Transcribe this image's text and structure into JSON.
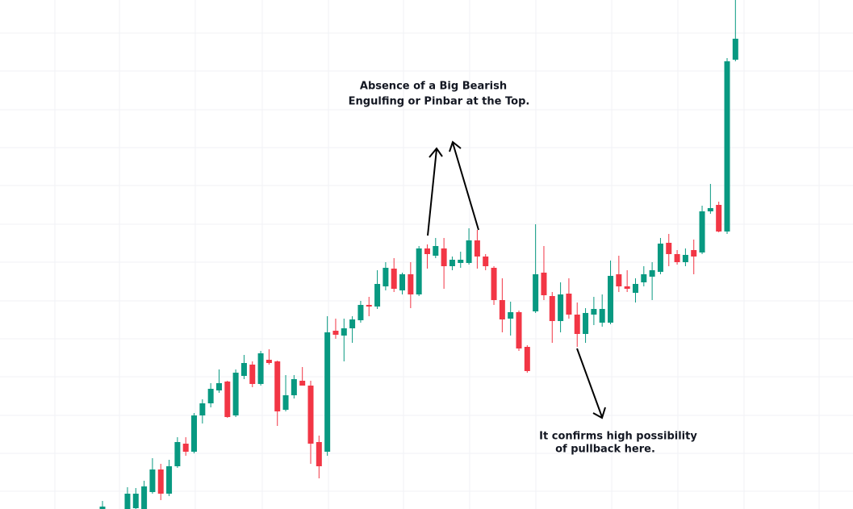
{
  "chart_data": {
    "type": "candlestick",
    "annotations": [
      "Absence of a Big Bearish",
      "Engulfing or Pinbar at the Top.",
      "It confirms high possibility",
      "of pullback here."
    ],
    "categories": [
      null,
      null,
      null,
      null,
      null,
      null,
      null,
      null,
      null,
      null,
      null,
      null,
      null,
      null,
      null,
      null,
      null,
      null,
      null,
      null,
      null,
      null,
      null,
      null,
      null,
      null,
      null,
      null,
      null,
      null,
      null,
      null,
      null,
      null,
      null,
      null,
      null,
      null,
      null,
      null,
      null,
      null,
      null,
      null,
      null,
      null,
      null,
      null,
      null,
      null,
      null,
      null,
      null,
      null,
      null,
      null,
      null,
      null,
      null,
      null,
      null,
      null,
      null,
      null,
      null,
      null,
      null,
      null,
      null,
      null,
      null,
      null,
      null,
      null,
      null,
      null,
      null
    ],
    "open": [
      0,
      null,
      null,
      0,
      1,
      0,
      21,
      49,
      19,
      53,
      81,
      71,
      116,
      131,
      147,
      158,
      116,
      165,
      179,
      155,
      185,
      183,
      123,
      141,
      159,
      153,
      83,
      71,
      221,
      215,
      224,
      234,
      253,
      251,
      276,
      298,
      271,
      291,
      266,
      323,
      314,
      323,
      301,
      305,
      305,
      333,
      313,
      299,
      259,
      236,
      244,
      201,
      245,
      293,
      264,
      233,
      267,
      241,
      217,
      241,
      231,
      231,
      291,
      276,
      268,
      281,
      288,
      294,
      330,
      316,
      306,
      321,
      318,
      369,
      377,
      344,
      557
    ],
    "high": [
      10,
      null,
      null,
      27,
      26,
      35,
      63,
      56,
      61,
      89,
      89,
      119,
      136,
      156,
      173,
      159,
      173,
      191,
      183,
      196,
      198,
      184,
      166,
      166,
      176,
      159,
      91,
      239,
      236,
      236,
      239,
      258,
      263,
      296,
      306,
      311,
      293,
      306,
      326,
      328,
      336,
      336,
      313,
      319,
      348,
      346,
      316,
      301,
      286,
      257,
      246,
      203,
      353,
      326,
      269,
      281,
      286,
      256,
      249,
      263,
      266,
      308,
      314,
      296,
      286,
      301,
      306,
      336,
      341,
      321,
      323,
      334,
      376,
      403,
      381,
      559,
      631
    ],
    "low": [
      0,
      null,
      null,
      0,
      0,
      0,
      19,
      11,
      16,
      51,
      66,
      69,
      106,
      126,
      144,
      113,
      114,
      161,
      151,
      153,
      179,
      103,
      121,
      137,
      153,
      56,
      38,
      66,
      211,
      183,
      206,
      231,
      239,
      248,
      271,
      269,
      266,
      249,
      264,
      298,
      311,
      273,
      296,
      299,
      303,
      298,
      296,
      253,
      219,
      215,
      196,
      169,
      243,
      259,
      206,
      219,
      236,
      201,
      206,
      228,
      226,
      229,
      269,
      269,
      256,
      276,
      259,
      291,
      301,
      303,
      301,
      291,
      316,
      366,
      343,
      341,
      555
    ],
    "close": [
      3,
      null,
      null,
      19,
      19,
      28,
      49,
      19,
      53,
      83,
      71,
      116,
      131,
      149,
      156,
      114,
      169,
      181,
      155,
      193,
      181,
      121,
      141,
      161,
      153,
      81,
      53,
      219,
      216,
      224,
      235,
      253,
      251,
      279,
      299,
      273,
      291,
      266,
      323,
      316,
      326,
      301,
      309,
      309,
      333,
      313,
      301,
      259,
      235,
      244,
      199,
      171,
      291,
      265,
      233,
      266,
      241,
      217,
      243,
      248,
      248,
      289,
      276,
      273,
      279,
      291,
      296,
      329,
      316,
      306,
      315,
      313,
      369,
      373,
      344,
      555,
      583
    ],
    "up_color": "#089981",
    "down_color": "#f23645",
    "ylim": [
      0,
      631
    ],
    "yticks": [
      22,
      69,
      116,
      164,
      211,
      258,
      306,
      353,
      401,
      448,
      495,
      543,
      590
    ],
    "grid": true
  }
}
